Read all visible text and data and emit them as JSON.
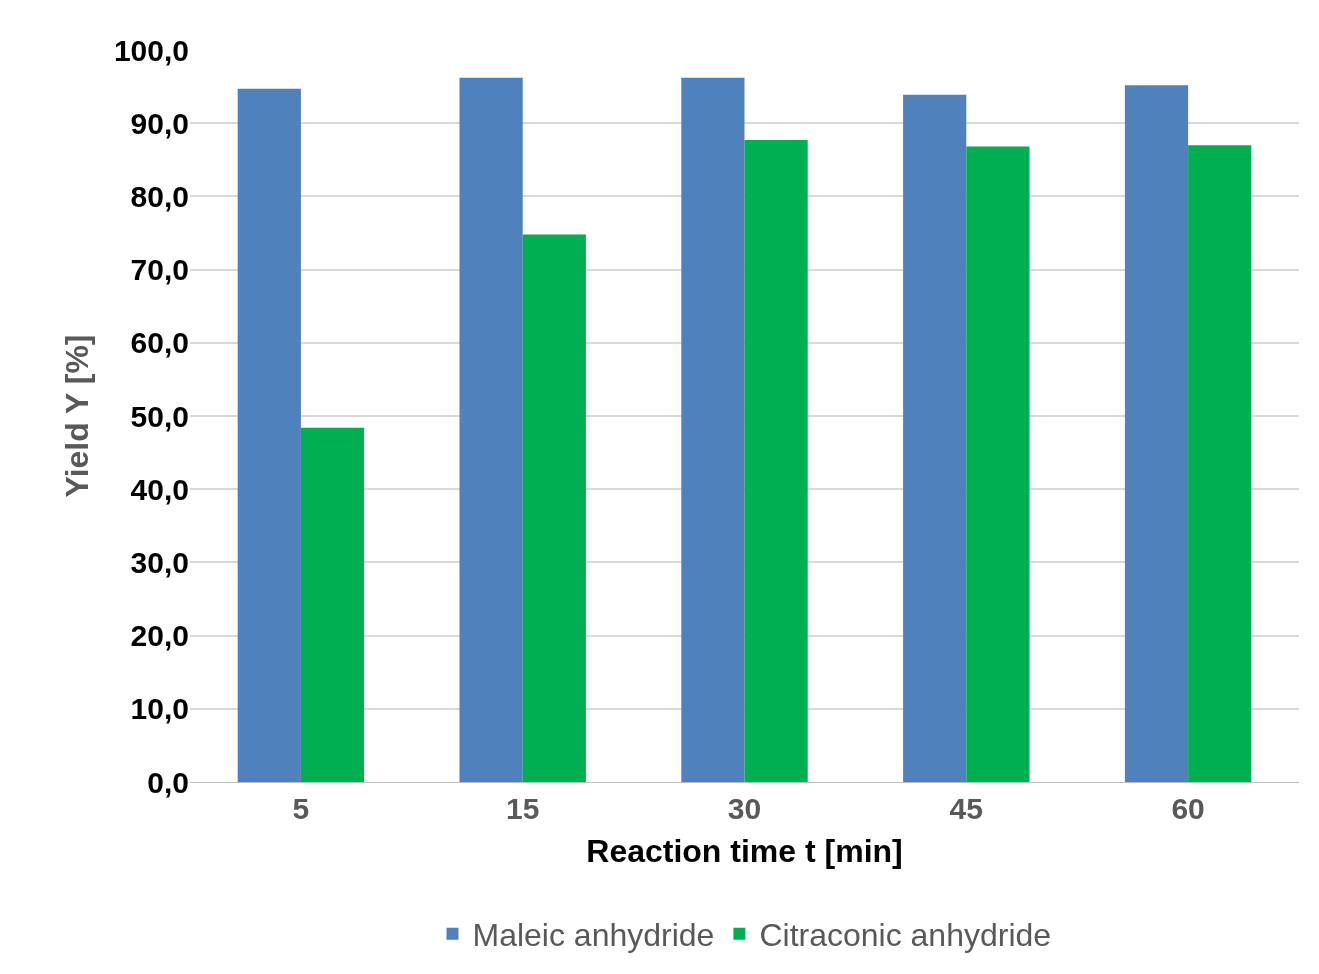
{
  "chart_data": {
    "type": "bar",
    "xlabel": "Reaction time t [min]",
    "ylabel": "Yield Y [%]",
    "categories": [
      "5",
      "15",
      "30",
      "45",
      "60"
    ],
    "series": [
      {
        "name": "Maleic anhydride",
        "color": "#4f81bd",
        "values": [
          94.7,
          96.2,
          96.2,
          93.9,
          95.2
        ]
      },
      {
        "name": "Citraconic anhydride",
        "color": "#00b050",
        "values": [
          48.4,
          74.8,
          87.7,
          86.8,
          87.0
        ]
      }
    ],
    "ylim": [
      0,
      100
    ],
    "yticks": [
      {
        "value": 0,
        "label": "0,0"
      },
      {
        "value": 10,
        "label": "10,0"
      },
      {
        "value": 20,
        "label": "20,0"
      },
      {
        "value": 30,
        "label": "30,0"
      },
      {
        "value": 40,
        "label": "40,0"
      },
      {
        "value": 50,
        "label": "50,0"
      },
      {
        "value": 60,
        "label": "60,0"
      },
      {
        "value": 70,
        "label": "70,0"
      },
      {
        "value": 80,
        "label": "80,0"
      },
      {
        "value": 90,
        "label": "90,0"
      },
      {
        "value": 100,
        "label": "100,0"
      }
    ],
    "grid": "y",
    "legend": "bottom"
  }
}
